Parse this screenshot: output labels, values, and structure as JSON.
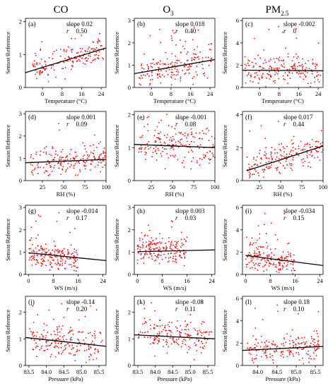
{
  "colors": {
    "points": "#ff0000",
    "fit": "#000000",
    "axis": "#000000"
  },
  "column_titles": [
    "CO",
    "O",
    "PM"
  ],
  "column_title_subscripts": [
    "",
    "3",
    "2.5"
  ],
  "chart_data": [
    {
      "type": "scatter",
      "label": "(a)",
      "pollutant": "CO",
      "xlabel": "Temperature (°C)",
      "ylabel": "Sensor/Reference",
      "xlim": [
        -7,
        26
      ],
      "ylim": [
        0,
        2.1
      ],
      "xticks": [
        0,
        8,
        16,
        24
      ],
      "yticks": [
        0,
        1,
        2
      ],
      "slope_text": "slope 0.02",
      "r_text": "0.50",
      "fit": {
        "x": [
          -7,
          26
        ],
        "y": [
          0.45,
          1.2
        ]
      },
      "cloud": {
        "x_range": [
          -4,
          25
        ],
        "y_center": [
          0.5,
          1.15
        ],
        "y_spread": 0.18,
        "n": 170
      }
    },
    {
      "type": "scatter",
      "label": "(b)",
      "pollutant": "O3",
      "xlabel": "Temperature (°C)",
      "ylabel": "Sensor/Reference",
      "xlim": [
        -7,
        26
      ],
      "ylim": [
        0,
        3.1
      ],
      "xticks": [
        0,
        8,
        16,
        24
      ],
      "yticks": [
        0,
        1,
        2,
        3
      ],
      "slope_text": "slope 0.018",
      "r_text": "0.40",
      "fit": {
        "x": [
          -7,
          26
        ],
        "y": [
          0.62,
          1.25
        ]
      },
      "cloud": {
        "x_range": [
          -5,
          25
        ],
        "y_center": [
          0.6,
          1.3
        ],
        "y_spread": 0.35,
        "n": 190
      }
    },
    {
      "type": "scatter",
      "label": "(c)",
      "pollutant": "PM2.5",
      "xlabel": "Temperature (°C)",
      "ylabel": "Sensor/Reference",
      "xlim": [
        -7,
        26
      ],
      "ylim": [
        0,
        6.2
      ],
      "xticks": [
        0,
        8,
        16,
        24
      ],
      "yticks": [
        0,
        2,
        4,
        6
      ],
      "slope_text": "slope -0.002",
      "r_text": "0",
      "fit": {
        "x": [
          -7,
          26
        ],
        "y": [
          1.55,
          1.5
        ]
      },
      "cloud": {
        "x_range": [
          -6,
          25
        ],
        "y_center": [
          1.6,
          1.5
        ],
        "y_spread": 0.7,
        "n": 190
      }
    },
    {
      "type": "scatter",
      "label": "(d)",
      "pollutant": "CO",
      "xlabel": "RH (%)",
      "ylabel": "Sensor/Reference",
      "xlim": [
        5,
        100
      ],
      "ylim": [
        0,
        3.1
      ],
      "xticks": [
        25,
        50,
        75,
        100
      ],
      "yticks": [
        0,
        1,
        2,
        3
      ],
      "slope_text": "slope 0.001",
      "r_text": "0.09",
      "fit": {
        "x": [
          5,
          100
        ],
        "y": [
          0.8,
          0.95
        ]
      },
      "cloud": {
        "x_range": [
          10,
          100
        ],
        "y_center": [
          0.8,
          0.98
        ],
        "y_spread": 0.28,
        "n": 190
      }
    },
    {
      "type": "scatter",
      "label": "(e)",
      "pollutant": "O3",
      "xlabel": "RH (%)",
      "ylabel": "Sensor/Reference",
      "xlim": [
        5,
        100
      ],
      "ylim": [
        0,
        2.1
      ],
      "xticks": [
        25,
        50,
        75,
        100
      ],
      "yticks": [
        0,
        1,
        2
      ],
      "slope_text": "slope -0.001",
      "r_text": "0.08",
      "fit": {
        "x": [
          5,
          100
        ],
        "y": [
          1.1,
          1.0
        ]
      },
      "cloud": {
        "x_range": [
          10,
          100
        ],
        "y_center": [
          1.1,
          1.0
        ],
        "y_spread": 0.28,
        "n": 190
      }
    },
    {
      "type": "scatter",
      "label": "(f)",
      "pollutant": "PM2.5",
      "xlabel": "RH (%)",
      "ylabel": "Sensor/Reference",
      "xlim": [
        5,
        100
      ],
      "ylim": [
        0,
        4.2
      ],
      "xticks": [
        25,
        50,
        75,
        100
      ],
      "yticks": [
        0,
        2,
        4
      ],
      "slope_text": "slope 0.017",
      "r_text": "0.44",
      "fit": {
        "x": [
          10,
          100
        ],
        "y": [
          0.6,
          2.1
        ]
      },
      "cloud": {
        "x_range": [
          10,
          100
        ],
        "y_center": [
          0.7,
          2.1
        ],
        "y_spread": 0.45,
        "n": 190
      }
    },
    {
      "type": "scatter",
      "label": "(g)",
      "pollutant": "CO",
      "xlabel": "WS (m/s)",
      "ylabel": "Sensor/Reference",
      "xlim": [
        -1,
        25
      ],
      "ylim": [
        0,
        3.1
      ],
      "xticks": [
        0,
        8,
        16,
        24
      ],
      "yticks": [
        0,
        1,
        2,
        3
      ],
      "slope_text": "slope -0.014",
      "r_text": "0.17",
      "fit": {
        "x": [
          0,
          25
        ],
        "y": [
          0.97,
          0.62
        ]
      },
      "cloud": {
        "x_range": [
          0,
          16
        ],
        "y_center": [
          0.95,
          0.7
        ],
        "y_spread": 0.3,
        "n": 190
      }
    },
    {
      "type": "scatter",
      "label": "(h)",
      "pollutant": "O3",
      "xlabel": "WS (m/s)",
      "ylabel": "Sensor/Reference",
      "xlim": [
        -1,
        25
      ],
      "ylim": [
        0,
        3.1
      ],
      "xticks": [
        0,
        8,
        16,
        24
      ],
      "yticks": [
        0,
        1,
        2,
        3
      ],
      "slope_text": "slope 0.003",
      "r_text": "0.03",
      "fit": {
        "x": [
          0,
          25
        ],
        "y": [
          1.02,
          1.1
        ]
      },
      "cloud": {
        "x_range": [
          0,
          16
        ],
        "y_center": [
          1.05,
          1.1
        ],
        "y_spread": 0.32,
        "n": 190
      }
    },
    {
      "type": "scatter",
      "label": "(i)",
      "pollutant": "PM2.5",
      "xlabel": "WS (m/s)",
      "ylabel": "Sensor/Reference",
      "xlim": [
        -1,
        25
      ],
      "ylim": [
        0,
        6.2
      ],
      "xticks": [
        0,
        8,
        16,
        24
      ],
      "yticks": [
        0,
        2,
        4,
        6
      ],
      "slope_text": "slope -0.034",
      "r_text": "0.15",
      "fit": {
        "x": [
          0,
          25
        ],
        "y": [
          1.7,
          0.8
        ]
      },
      "cloud": {
        "x_range": [
          0,
          16
        ],
        "y_center": [
          1.7,
          1.0
        ],
        "y_spread": 0.65,
        "n": 190
      }
    },
    {
      "type": "scatter",
      "label": "(j)",
      "pollutant": "CO",
      "xlabel": "Pressure (kPa)",
      "ylabel": "Sensor/Reference",
      "xlim": [
        83.4,
        85.7
      ],
      "ylim": [
        0,
        2.6
      ],
      "xticks": [
        83.5,
        84.0,
        84.5,
        85.0,
        85.5
      ],
      "xtick_labels": [
        "83.5",
        "84.0",
        "84.5",
        "85.0",
        "85.5"
      ],
      "yticks": [
        0,
        1,
        2
      ],
      "slope_text": "slope -0.14",
      "r_text": "0.20",
      "fit": {
        "x": [
          83.4,
          85.7
        ],
        "y": [
          1.05,
          0.72
        ]
      },
      "cloud": {
        "x_range": [
          83.5,
          85.6
        ],
        "y_center": [
          1.0,
          0.75
        ],
        "y_spread": 0.28,
        "n": 190
      }
    },
    {
      "type": "scatter",
      "label": "(k)",
      "pollutant": "O3",
      "xlabel": "Pressure (kPa)",
      "ylabel": "Sensor/Reference",
      "xlim": [
        83.4,
        85.7
      ],
      "ylim": [
        0,
        2.6
      ],
      "xticks": [
        83.5,
        84.0,
        84.5,
        85.0,
        85.5
      ],
      "xtick_labels": [
        "83.5",
        "84.0",
        "84.5",
        "85.0",
        "85.5"
      ],
      "yticks": [
        0,
        1,
        2
      ],
      "slope_text": "slope -0.08",
      "r_text": "0.11",
      "fit": {
        "x": [
          83.4,
          85.7
        ],
        "y": [
          1.15,
          1.0
        ]
      },
      "cloud": {
        "x_range": [
          83.5,
          85.6
        ],
        "y_center": [
          1.15,
          1.0
        ],
        "y_spread": 0.28,
        "n": 190
      }
    },
    {
      "type": "scatter",
      "label": "(l)",
      "pollutant": "PM2.5",
      "xlabel": "Pressure (kPa)",
      "ylabel": "Sensor/Reference",
      "xlim": [
        83.6,
        85.7
      ],
      "ylim": [
        0,
        6.2
      ],
      "xticks": [
        84.0,
        84.5,
        85.0,
        85.5
      ],
      "xtick_labels": [
        "84.0",
        "84.5",
        "85.0",
        "85.5"
      ],
      "yticks": [
        0,
        2,
        4,
        6
      ],
      "slope_text": "slope 0.18",
      "r_text": "0.10",
      "fit": {
        "x": [
          83.6,
          85.7
        ],
        "y": [
          1.35,
          1.7
        ]
      },
      "cloud": {
        "x_range": [
          83.7,
          85.6
        ],
        "y_center": [
          1.4,
          1.7
        ],
        "y_spread": 0.6,
        "n": 190
      }
    }
  ]
}
